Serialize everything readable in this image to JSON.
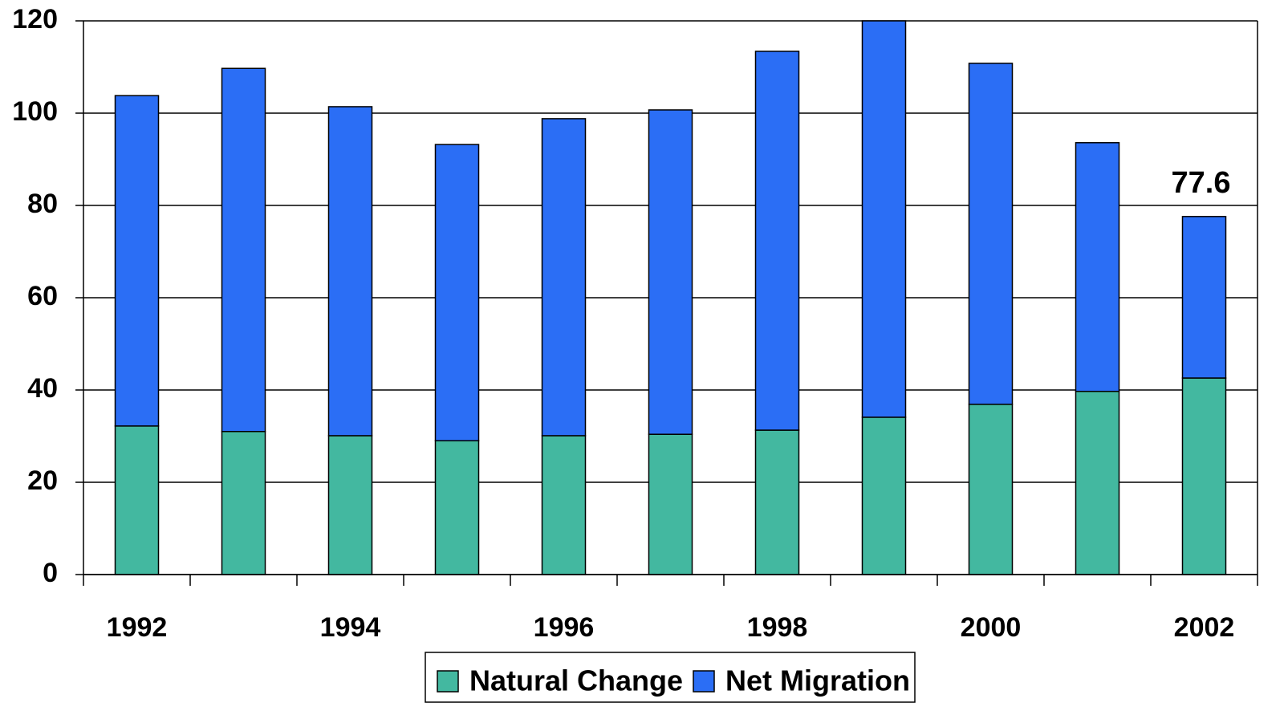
{
  "chart_data": {
    "type": "stacked_bar",
    "categories": [
      "1992",
      null,
      "1994",
      null,
      "1996",
      null,
      "1998",
      null,
      "2000",
      null,
      "2002"
    ],
    "series": [
      {
        "name": "Natural Change",
        "color": "#43b8a0",
        "values": [
          32.2,
          31.0,
          30.1,
          29.0,
          30.1,
          30.4,
          31.3,
          34.1,
          36.9,
          39.7,
          42.6
        ]
      },
      {
        "name": "Net Migration",
        "color": "#2b6ef5",
        "values": [
          71.6,
          78.7,
          71.3,
          64.2,
          68.7,
          70.3,
          82.1,
          85.9,
          73.9,
          53.9,
          35.0
        ]
      }
    ],
    "annotations": [
      "77.6"
    ],
    "ylim": [
      0,
      120
    ],
    "yticks": [
      0,
      20,
      40,
      60,
      80,
      100,
      120
    ],
    "grid": true
  }
}
